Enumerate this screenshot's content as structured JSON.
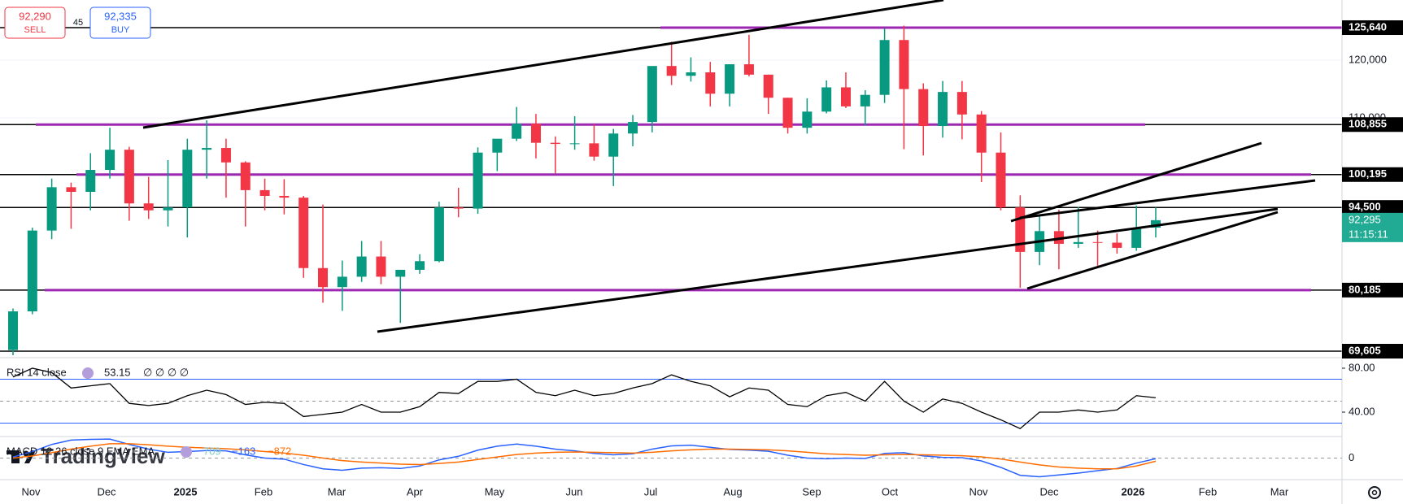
{
  "toolbar": {
    "sell_price": "92,290",
    "sell_label": "SELL",
    "spread": "45",
    "buy_price": "92,335",
    "buy_label": "BUY"
  },
  "logo": "TradingView",
  "chart_data": {
    "type": "candlestick",
    "up_color": "#089981",
    "down_color": "#f23645",
    "ylim": [
      68480,
      130430
    ],
    "yticks": [
      {
        "value": 110000,
        "label": "110,000"
      },
      {
        "value": 120000,
        "label": "120,000"
      }
    ],
    "x_labels": [
      "Nov",
      "Dec",
      "2025",
      "Feb",
      "Mar",
      "Apr",
      "May",
      "Jun",
      "Jul",
      "Aug",
      "Sep",
      "Oct",
      "Nov",
      "Dec",
      "2026",
      "Feb",
      "Mar"
    ],
    "candles": {
      "open": [
        69800,
        76500,
        90500,
        98000,
        97200,
        101000,
        104500,
        95200,
        94000,
        94500,
        104500,
        104800,
        102300,
        97500,
        96500,
        96200,
        84000,
        80700,
        82500,
        86000,
        82500,
        83700,
        85200,
        94500,
        94300,
        104000,
        106400,
        109000,
        105700,
        105500,
        105600,
        103300,
        107300,
        109300,
        119000,
        117300,
        117900,
        114200,
        119300,
        117500,
        113500,
        108300,
        111100,
        115300,
        112000,
        114000,
        123500,
        115000,
        108600,
        114500,
        110600,
        104000,
        94500,
        86800,
        90400,
        88200,
        88500,
        88400,
        87500,
        91000
      ],
      "high": [
        77000,
        91000,
        99500,
        98800,
        103900,
        108300,
        105000,
        99800,
        102700,
        106400,
        109600,
        106400,
        102500,
        99500,
        99400,
        96500,
        95000,
        85300,
        88700,
        88700,
        83500,
        86400,
        95500,
        97900,
        104900,
        105800,
        111900,
        110700,
        106800,
        110300,
        108900,
        108100,
        110500,
        118800,
        123200,
        120500,
        119700,
        119300,
        124400,
        117500,
        113500,
        113400,
        116500,
        117900,
        114800,
        125500,
        126000,
        116000,
        116400,
        116400,
        111200,
        107500,
        96600,
        93100,
        94100,
        94600,
        90500,
        90000,
        94800,
        94500
      ],
      "low": [
        68900,
        76000,
        89000,
        90800,
        94000,
        99500,
        92200,
        92500,
        91200,
        89300,
        99500,
        96200,
        91200,
        94000,
        93300,
        82300,
        78000,
        76600,
        81600,
        81200,
        74500,
        83000,
        85000,
        92800,
        93400,
        100800,
        106000,
        103000,
        100400,
        104500,
        102600,
        98200,
        105100,
        107500,
        115700,
        116300,
        112000,
        112000,
        117200,
        110700,
        107300,
        107300,
        110800,
        111700,
        108700,
        112600,
        104600,
        103500,
        106600,
        106300,
        98900,
        94000,
        80600,
        84500,
        83800,
        87500,
        84400,
        86500,
        87000,
        89300
      ],
      "close": [
        76500,
        90500,
        98000,
        97200,
        101000,
        104500,
        95200,
        94000,
        94500,
        104500,
        104800,
        102300,
        97500,
        96500,
        96200,
        84000,
        80700,
        82500,
        86000,
        82500,
        83700,
        85200,
        94500,
        94300,
        104000,
        106400,
        109000,
        105700,
        105500,
        105600,
        103300,
        107300,
        109300,
        119000,
        117300,
        117900,
        114200,
        119300,
        117500,
        113500,
        108300,
        111100,
        115300,
        112000,
        114000,
        123500,
        115000,
        108600,
        114500,
        110600,
        104000,
        94500,
        86800,
        90400,
        88200,
        88500,
        88400,
        87500,
        91000,
        92295
      ]
    },
    "levels": [
      {
        "value": 125640,
        "label": "125,640"
      },
      {
        "value": 108855,
        "label": "108,855"
      },
      {
        "value": 100195,
        "label": "100,195"
      },
      {
        "value": 94500,
        "label": "94,500"
      },
      {
        "value": 80185,
        "label": "80,185"
      },
      {
        "value": 69605,
        "label": "69,605"
      }
    ],
    "level_color": "#9c27b0",
    "last_price": {
      "value": 92295,
      "label": "92,295",
      "countdown": "11:15:11",
      "color": "#22ab94"
    },
    "rsi": {
      "title": "RSI 14 close",
      "extras": "∅ ∅ ∅ ∅",
      "color": "#000000",
      "band_color": "#2962ff",
      "ylim": [
        17.8,
        89.6
      ],
      "yticks": [
        {
          "value": 80,
          "label": "80.00"
        },
        {
          "value": 40,
          "label": "40.00"
        }
      ],
      "bands": [
        70,
        30
      ],
      "middle": 50,
      "values": [
        72,
        80,
        76,
        62,
        64,
        66,
        48,
        46,
        48,
        55,
        60,
        56,
        47,
        49,
        48,
        36,
        38,
        40,
        47,
        40,
        40,
        45,
        58,
        57,
        68,
        68,
        70,
        58,
        55,
        60,
        55,
        57,
        62,
        66,
        74,
        68,
        64,
        54,
        62,
        60,
        47,
        45,
        55,
        58,
        50,
        68,
        50,
        40,
        52,
        48,
        40,
        33,
        25,
        40,
        40,
        42,
        40,
        42,
        55,
        53.15
      ]
    },
    "macd": {
      "title": "MACD 12 26 close 9 EMA EMA",
      "ylim": [
        -6000,
        6000
      ],
      "yticks": [
        0
      ],
      "histogram": {
        "value": 709,
        "color": "#80cbc4"
      },
      "series": [
        {
          "name": "MACD",
          "color": "#2962ff",
          "values": [
            300,
            1800,
            3800,
            5000,
            5200,
            5300,
            3800,
            2500,
            1600,
            1800,
            2100,
            2000,
            900,
            0,
            -300,
            -1800,
            -3000,
            -3400,
            -2800,
            -2700,
            -2900,
            -2200,
            -500,
            500,
            2200,
            3300,
            3900,
            3300,
            2500,
            2000,
            1300,
            900,
            1200,
            2500,
            3400,
            3600,
            3000,
            2400,
            2200,
            1900,
            800,
            0,
            -200,
            0,
            -100,
            1300,
            1500,
            600,
            200,
            100,
            -800,
            -2600,
            -4800,
            -5200,
            -4700,
            -4200,
            -3500,
            -2900,
            -1400,
            -163
          ],
          "value_label": "−163"
        },
        {
          "name": "Signal",
          "color": "#ff6d00",
          "values": [
            0,
            600,
            1500,
            2500,
            3300,
            4000,
            4000,
            3700,
            3300,
            3000,
            2800,
            2600,
            2300,
            1800,
            1400,
            800,
            0,
            -700,
            -1100,
            -1400,
            -1700,
            -1800,
            -1500,
            -1100,
            -400,
            300,
            1000,
            1400,
            1600,
            1700,
            1600,
            1500,
            1400,
            1600,
            2000,
            2300,
            2500,
            2500,
            2400,
            2300,
            2000,
            1600,
            1200,
            1000,
            800,
            900,
            1000,
            900,
            800,
            650,
            350,
            -250,
            -1100,
            -1900,
            -2500,
            -2800,
            -3000,
            -3000,
            -2200,
            -872
          ],
          "value_label": "−872"
        }
      ]
    }
  }
}
